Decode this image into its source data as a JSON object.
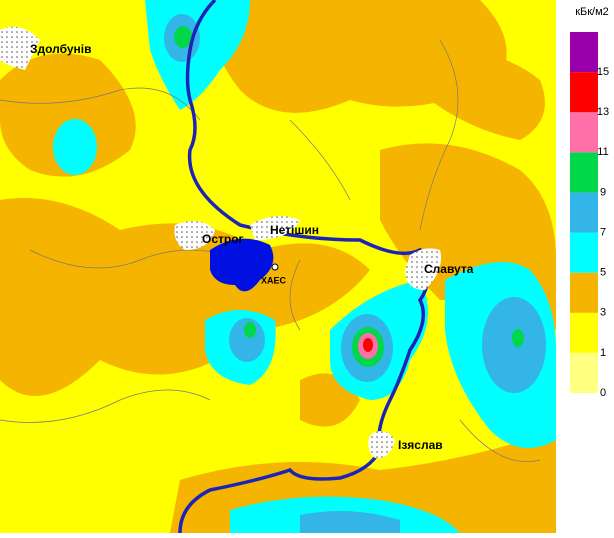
{
  "map": {
    "places": [
      "Здолбунів",
      "Острог",
      "Нетішин",
      "ХАЕС",
      "Славута",
      "Ізяслав"
    ],
    "legend": {
      "unit": "кБк/м2",
      "ticks": [
        0,
        1,
        3,
        5,
        7,
        9,
        11,
        13,
        15
      ],
      "colors": [
        "#ffff80",
        "#ffff00",
        "#f5b400",
        "#00ffff",
        "#33b5e8",
        "#00d84a",
        "#ff6fa8",
        "#ff0000",
        "#9900aa"
      ]
    }
  }
}
